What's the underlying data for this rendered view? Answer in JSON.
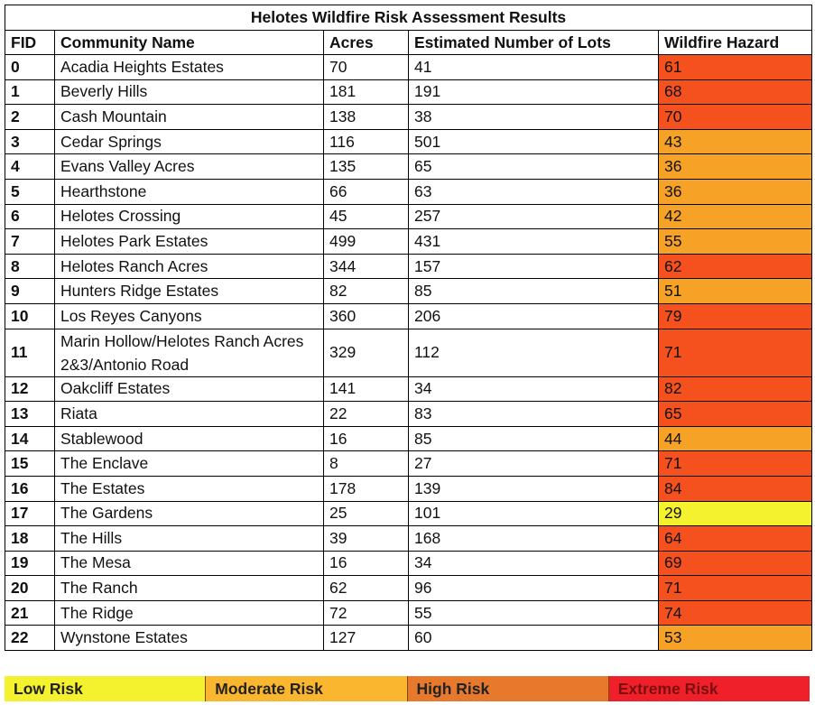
{
  "table": {
    "title": "Helotes Wildfire Risk Assessment Results",
    "headers": [
      "FID",
      "Community Name",
      "Acres",
      "Estimated Number of Lots",
      "Wildfire Hazard"
    ],
    "rows": [
      {
        "fid": "0",
        "name": "Acadia Heights Estates",
        "acres": "70",
        "lots": "41",
        "hazard": "61",
        "color": "#f4511e"
      },
      {
        "fid": "1",
        "name": "Beverly Hills",
        "acres": "181",
        "lots": "191",
        "hazard": "68",
        "color": "#f4511e"
      },
      {
        "fid": "2",
        "name": "Cash Mountain",
        "acres": "138",
        "lots": "38",
        "hazard": "70",
        "color": "#f4511e"
      },
      {
        "fid": "3",
        "name": "Cedar Springs",
        "acres": "116",
        "lots": "501",
        "hazard": "43",
        "color": "#f6a227"
      },
      {
        "fid": "4",
        "name": "Evans Valley Acres",
        "acres": "135",
        "lots": "65",
        "hazard": "36",
        "color": "#f6a227"
      },
      {
        "fid": "5",
        "name": "Hearthstone",
        "acres": "66",
        "lots": "63",
        "hazard": "36",
        "color": "#f6a227"
      },
      {
        "fid": "6",
        "name": "Helotes Crossing",
        "acres": "45",
        "lots": "257",
        "hazard": "42",
        "color": "#f6a227"
      },
      {
        "fid": "7",
        "name": "Helotes Park Estates",
        "acres": "499",
        "lots": "431",
        "hazard": "55",
        "color": "#f6a227"
      },
      {
        "fid": "8",
        "name": "Helotes Ranch Acres",
        "acres": "344",
        "lots": "157",
        "hazard": "62",
        "color": "#f4511e"
      },
      {
        "fid": "9",
        "name": "Hunters Ridge Estates",
        "acres": "82",
        "lots": "85",
        "hazard": "51",
        "color": "#f6a227"
      },
      {
        "fid": "10",
        "name": "Los Reyes Canyons",
        "acres": "360",
        "lots": "206",
        "hazard": "79",
        "color": "#f4511e"
      },
      {
        "fid": "11",
        "name": "Marin Hollow/Helotes Ranch Acres 2&3/Antonio Road",
        "acres": "329",
        "lots": "112",
        "hazard": "71",
        "color": "#f4511e"
      },
      {
        "fid": "12",
        "name": "Oakcliff Estates",
        "acres": "141",
        "lots": "34",
        "hazard": "82",
        "color": "#f4511e"
      },
      {
        "fid": "13",
        "name": "Riata",
        "acres": "22",
        "lots": "83",
        "hazard": "65",
        "color": "#f4511e"
      },
      {
        "fid": "14",
        "name": "Stablewood",
        "acres": "16",
        "lots": "85",
        "hazard": "44",
        "color": "#f6a227"
      },
      {
        "fid": "15",
        "name": "The Enclave",
        "acres": "8",
        "lots": "27",
        "hazard": "71",
        "color": "#f4511e"
      },
      {
        "fid": "16",
        "name": "The Estates",
        "acres": "178",
        "lots": "139",
        "hazard": "84",
        "color": "#f4511e"
      },
      {
        "fid": "17",
        "name": "The Gardens",
        "acres": "25",
        "lots": "101",
        "hazard": "29",
        "color": "#f4f22e"
      },
      {
        "fid": "18",
        "name": "The Hills",
        "acres": "39",
        "lots": "168",
        "hazard": "64",
        "color": "#f4511e"
      },
      {
        "fid": "19",
        "name": "The Mesa",
        "acres": "16",
        "lots": "34",
        "hazard": "69",
        "color": "#f4511e"
      },
      {
        "fid": "20",
        "name": "The Ranch",
        "acres": "62",
        "lots": "96",
        "hazard": "71",
        "color": "#f4511e"
      },
      {
        "fid": "21",
        "name": "The Ridge",
        "acres": "72",
        "lots": "55",
        "hazard": "74",
        "color": "#f4511e"
      },
      {
        "fid": "22",
        "name": "Wynstone Estates",
        "acres": "127",
        "lots": "60",
        "hazard": "53",
        "color": "#f6a227"
      }
    ]
  },
  "legend": [
    {
      "label": "Low Risk",
      "color": "#f4f22e",
      "text_color": "#222222"
    },
    {
      "label": "Moderate Risk",
      "color": "#f9b62e",
      "text_color": "#222222"
    },
    {
      "label": "High Risk",
      "color": "#e6792c",
      "text_color": "#222222"
    },
    {
      "label": "Extreme Risk",
      "color": "#f0202a",
      "text_color": "#7a1010"
    }
  ]
}
